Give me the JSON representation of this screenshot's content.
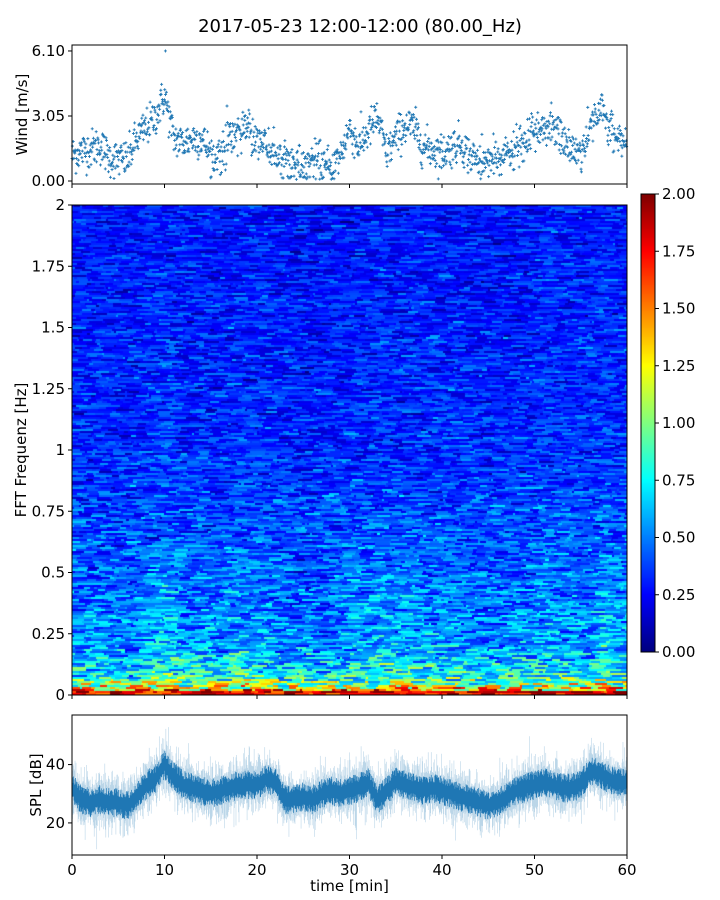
{
  "title": "2017-05-23 12:00-12:00 (80.00_Hz)",
  "chart_data": [
    {
      "type": "scatter",
      "name": "wind",
      "ylabel": "Wind [m/s]",
      "xlabel": "",
      "xlim": [
        0,
        60
      ],
      "ylim": [
        -0.14,
        6.38
      ],
      "yticks": [
        "0.00",
        "3.05",
        "6.10"
      ],
      "yticks_values": [
        0,
        3.05,
        6.1
      ],
      "marker": "+",
      "color": "#1f77b4",
      "minute_means_m_s": [
        1.2,
        1.4,
        1.5,
        1.7,
        1.1,
        1.0,
        1.0,
        2.0,
        2.5,
        3.0,
        4.0,
        2.0,
        1.8,
        2.0,
        2.0,
        1.3,
        1.2,
        2.0,
        2.3,
        2.5,
        2.0,
        1.8,
        0.9,
        1.2,
        0.8,
        0.7,
        1.0,
        0.8,
        0.6,
        1.2,
        2.5,
        1.6,
        2.3,
        3.0,
        1.3,
        2.0,
        2.6,
        2.5,
        1.6,
        1.5,
        1.3,
        1.6,
        1.8,
        1.2,
        0.9,
        1.0,
        1.0,
        1.2,
        1.5,
        1.8,
        2.2,
        2.6,
        2.5,
        2.0,
        1.5,
        1.3,
        2.5,
        3.5,
        2.5,
        2.0,
        2.0
      ],
      "max_value": 6.1
    },
    {
      "type": "heatmap",
      "name": "spectrogram",
      "ylabel": "FFT Frequenz [Hz]",
      "xlim": [
        0,
        60
      ],
      "ylim": [
        0,
        2
      ],
      "yticks": [
        "0",
        "0.25",
        "0.5",
        "0.75",
        "1",
        "1.25",
        "1.5",
        "1.75",
        "2"
      ],
      "yticks_values": [
        0,
        0.25,
        0.5,
        0.75,
        1,
        1.25,
        1.5,
        1.75,
        2
      ],
      "colormap": "jet",
      "clim": [
        0,
        2
      ],
      "colorbar_ticks": [
        "0.00",
        "0.25",
        "0.50",
        "0.75",
        "1.00",
        "1.25",
        "1.50",
        "1.75",
        "2.00"
      ],
      "band_mean_levels": [
        {
          "freq_hz": 0.0,
          "level": 1.9
        },
        {
          "freq_hz": 0.03,
          "level": 1.2
        },
        {
          "freq_hz": 0.08,
          "level": 0.75
        },
        {
          "freq_hz": 0.2,
          "level": 0.55
        },
        {
          "freq_hz": 0.5,
          "level": 0.45
        },
        {
          "freq_hz": 1.0,
          "level": 0.33
        },
        {
          "freq_hz": 2.0,
          "level": 0.28
        }
      ]
    },
    {
      "type": "line",
      "name": "spl",
      "ylabel": "SPL [dB]",
      "xlabel": "time [min]",
      "xlim": [
        0,
        60
      ],
      "ylim": [
        9,
        57
      ],
      "xticks": [
        "0",
        "10",
        "20",
        "30",
        "40",
        "50",
        "60"
      ],
      "xticks_values": [
        0,
        10,
        20,
        30,
        40,
        50,
        60
      ],
      "yticks": [
        "20",
        "40"
      ],
      "yticks_values": [
        20,
        40
      ],
      "color": "#1f77b4",
      "minute_means_db": [
        32,
        28,
        27,
        28,
        27,
        27,
        26,
        29,
        33,
        35,
        40,
        36,
        33,
        32,
        31,
        30,
        31,
        32,
        33,
        33,
        33,
        35,
        34,
        28,
        28,
        29,
        28,
        30,
        31,
        30,
        31,
        32,
        34,
        28,
        31,
        34,
        33,
        32,
        31,
        32,
        31,
        30,
        29,
        28,
        27,
        26,
        27,
        29,
        31,
        32,
        33,
        34,
        33,
        32,
        32,
        33,
        38,
        37,
        35,
        34,
        34
      ]
    }
  ]
}
